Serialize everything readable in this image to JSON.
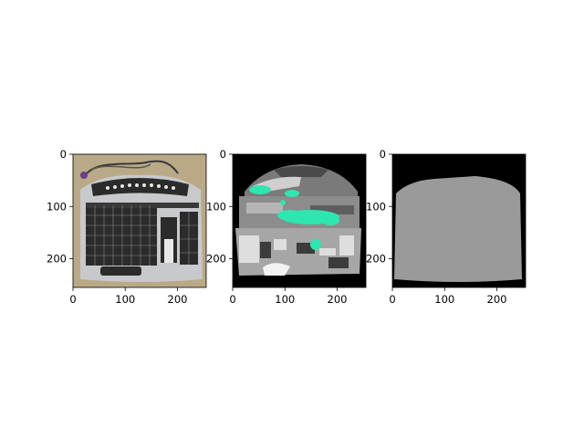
{
  "figure": {
    "panels": [
      {
        "name": "photo-keyboard",
        "x_ticks": [
          "0",
          "100",
          "200"
        ],
        "y_ticks": [
          "0",
          "100",
          "200"
        ],
        "xlim": [
          0,
          255
        ],
        "ylim": [
          255,
          0
        ]
      },
      {
        "name": "segmentation-map",
        "x_ticks": [
          "0",
          "100",
          "200"
        ],
        "y_ticks": [
          "0",
          "100",
          "200"
        ],
        "xlim": [
          0,
          255
        ],
        "ylim": [
          255,
          0
        ]
      },
      {
        "name": "mask",
        "x_ticks": [
          "0",
          "100",
          "200"
        ],
        "y_ticks": [
          "0",
          "100",
          "200"
        ],
        "xlim": [
          0,
          255
        ],
        "ylim": [
          255,
          0
        ]
      }
    ],
    "colors": {
      "photo_background": "#b9a986",
      "keyboard_body": "#c7c9cc",
      "keyboard_keys": "#2b2b2b",
      "segment_highlight": "#2ee6b0",
      "mask_fill": "#9a9a9a",
      "mask_background": "#000000"
    }
  }
}
